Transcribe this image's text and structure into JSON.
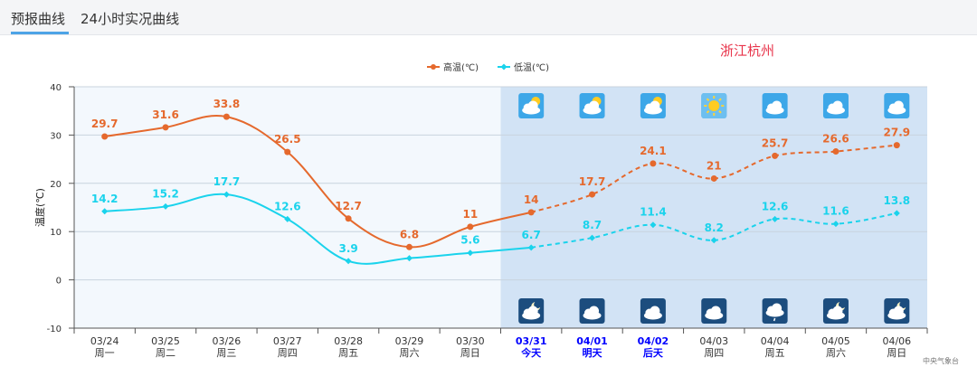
{
  "tabs": [
    {
      "label": "预报曲线",
      "active": true
    },
    {
      "label": "24小时实况曲线",
      "active": false
    }
  ],
  "location": "浙江杭州",
  "source": "中央气象台",
  "colors": {
    "high": "#e5692d",
    "low": "#1ad3ec",
    "past_bg": "#f3f8fd",
    "forecast_bg": "#d2e3f5",
    "highlight_day": "#0000ff"
  },
  "chart_data": {
    "type": "line",
    "title": "",
    "ylabel": "温度(℃)",
    "ylim": [
      -10,
      40
    ],
    "yticks": [
      -10,
      0,
      10,
      20,
      30,
      40
    ],
    "legend_position": "top-center",
    "grid": true,
    "categories": [
      {
        "date": "03/24",
        "day": "周一",
        "forecast": false,
        "highlight": false
      },
      {
        "date": "03/25",
        "day": "周二",
        "forecast": false,
        "highlight": false
      },
      {
        "date": "03/26",
        "day": "周三",
        "forecast": false,
        "highlight": false
      },
      {
        "date": "03/27",
        "day": "周四",
        "forecast": false,
        "highlight": false
      },
      {
        "date": "03/28",
        "day": "周五",
        "forecast": false,
        "highlight": false
      },
      {
        "date": "03/29",
        "day": "周六",
        "forecast": false,
        "highlight": false
      },
      {
        "date": "03/30",
        "day": "周日",
        "forecast": false,
        "highlight": false
      },
      {
        "date": "03/31",
        "day": "今天",
        "forecast": true,
        "highlight": true
      },
      {
        "date": "04/01",
        "day": "明天",
        "forecast": true,
        "highlight": true
      },
      {
        "date": "04/02",
        "day": "后天",
        "forecast": true,
        "highlight": true
      },
      {
        "date": "04/03",
        "day": "周四",
        "forecast": true,
        "highlight": false
      },
      {
        "date": "04/04",
        "day": "周五",
        "forecast": true,
        "highlight": false
      },
      {
        "date": "04/05",
        "day": "周六",
        "forecast": true,
        "highlight": false
      },
      {
        "date": "04/06",
        "day": "周日",
        "forecast": true,
        "highlight": false
      }
    ],
    "series": [
      {
        "name": "高温(℃)",
        "key": "high",
        "values": [
          29.7,
          31.6,
          33.8,
          26.5,
          12.7,
          6.8,
          11,
          14,
          17.7,
          24.1,
          21,
          25.7,
          26.6,
          27.9
        ]
      },
      {
        "name": "低温(℃)",
        "key": "low",
        "values": [
          14.2,
          15.2,
          17.7,
          12.6,
          3.9,
          4.5,
          5.6,
          6.7,
          8.7,
          11.4,
          8.2,
          12.6,
          11.6,
          13.8
        ]
      }
    ],
    "label_hidden_low_index": 5,
    "day_icons": [
      "partly-cloudy-icon",
      "partly-cloudy-icon",
      "partly-cloudy-icon",
      "sunny-icon",
      "cloudy-icon",
      "cloudy-icon",
      "cloudy-icon"
    ],
    "night_icons": [
      "moon-cloud-icon",
      "cloudy-night-icon",
      "cloudy-night-icon",
      "cloudy-night-icon",
      "drizzle-night-icon",
      "moon-cloud-icon",
      "moon-cloud-icon"
    ]
  }
}
